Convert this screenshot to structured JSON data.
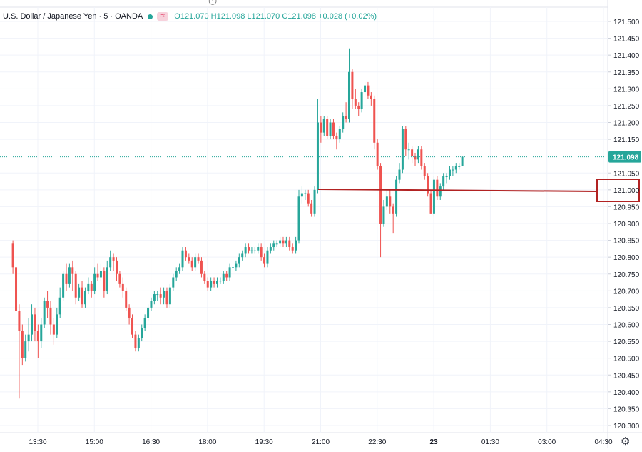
{
  "legend": {
    "symbol": "U.S. Dollar / Japanese Yen · 5 · OANDA",
    "badge": "≈",
    "ohlc": "O121.070  H121.098  L121.070  C121.098  +0.028 (+0.02%)",
    "dot_color": "#26a69a",
    "badge_color": "#f7d2dc"
  },
  "chart_data": {
    "type": "candlestick",
    "title": "",
    "ylim": [
      120.28,
      121.54
    ],
    "y_ticks": [
      "121.500",
      "121.450",
      "121.400",
      "121.350",
      "121.300",
      "121.250",
      "121.200",
      "121.150",
      "121.100",
      "121.050",
      "121.000",
      "120.950",
      "120.900",
      "120.850",
      "120.800",
      "120.750",
      "120.700",
      "120.650",
      "120.600",
      "120.550",
      "120.500",
      "120.450",
      "120.400",
      "120.350",
      "120.300"
    ],
    "x_ticks": [
      {
        "label": "13:30",
        "t": 0.5
      },
      {
        "label": "15:00",
        "t": 1.5
      },
      {
        "label": "16:30",
        "t": 2.5
      },
      {
        "label": "18:00",
        "t": 3.5
      },
      {
        "label": "19:30",
        "t": 4.5
      },
      {
        "label": "21:00",
        "t": 5.5
      },
      {
        "label": "22:30",
        "t": 6.5
      },
      {
        "label": "23",
        "t": 7.5
      },
      {
        "label": "01:30",
        "t": 8.5
      },
      {
        "label": "03:00",
        "t": 9.5
      },
      {
        "label": "04:30",
        "t": 10.5
      }
    ],
    "candles_per_tick": 18,
    "first_candle_offset": -0.44,
    "last_price": "121.098",
    "last_value": 121.098,
    "up_color": "#26a69a",
    "down_color": "#ef5350",
    "annotation_line": {
      "value": 121.0,
      "label": "121.000",
      "color": "#b22222"
    },
    "closes": [
      120.84,
      120.77,
      120.64,
      120.58,
      120.5,
      120.55,
      120.57,
      120.63,
      120.58,
      120.55,
      120.6,
      120.67,
      120.65,
      120.6,
      120.57,
      120.63,
      120.68,
      120.75,
      120.72,
      120.77,
      120.75,
      120.68,
      120.71,
      120.66,
      120.7,
      120.72,
      120.7,
      120.75,
      120.74,
      120.76,
      120.7,
      120.77,
      120.8,
      120.79,
      120.75,
      120.72,
      120.7,
      120.65,
      120.62,
      120.57,
      120.53,
      120.56,
      120.59,
      120.62,
      120.65,
      120.67,
      120.69,
      120.69,
      120.68,
      120.7,
      120.66,
      120.71,
      120.74,
      120.76,
      120.77,
      120.82,
      120.8,
      120.79,
      120.77,
      120.8,
      120.79,
      120.75,
      120.73,
      120.71,
      120.73,
      120.72,
      120.73,
      120.73,
      120.75,
      120.74,
      120.77,
      120.77,
      120.78,
      120.8,
      120.81,
      120.83,
      120.82,
      120.82,
      120.82,
      120.83,
      120.8,
      120.78,
      120.82,
      120.83,
      120.84,
      120.84,
      120.85,
      120.84,
      120.85,
      120.83,
      120.82,
      120.85,
      120.98,
      120.99,
      120.99,
      120.96,
      120.93,
      121.0,
      121.2,
      121.17,
      121.21,
      121.16,
      121.2,
      121.16,
      121.15,
      121.18,
      121.22,
      121.21,
      121.35,
      121.27,
      121.25,
      121.24,
      121.29,
      121.31,
      121.28,
      121.27,
      121.14,
      121.07,
      120.9,
      120.95,
      120.98,
      120.95,
      120.93,
      121.03,
      121.06,
      121.18,
      121.12,
      121.12,
      121.1,
      121.09,
      121.12,
      121.07,
      121.04,
      120.99,
      120.93,
      121.03,
      120.98,
      121.01,
      121.04,
      121.04,
      121.06,
      121.06,
      121.07,
      121.07,
      121.098
    ],
    "candles": [
      [
        120.84,
        120.85,
        120.75,
        120.77
      ],
      [
        120.77,
        120.8,
        120.6,
        120.64
      ],
      [
        120.64,
        120.66,
        120.38,
        120.58
      ],
      [
        120.58,
        120.6,
        120.48,
        120.5
      ],
      [
        120.5,
        120.57,
        120.49,
        120.55
      ],
      [
        120.55,
        120.62,
        120.52,
        120.57
      ],
      [
        120.57,
        120.66,
        120.55,
        120.63
      ],
      [
        120.63,
        120.65,
        120.55,
        120.58
      ],
      [
        120.58,
        120.6,
        120.5,
        120.55
      ],
      [
        120.55,
        120.62,
        120.53,
        120.6
      ],
      [
        120.6,
        120.68,
        120.59,
        120.67
      ],
      [
        120.67,
        120.7,
        120.62,
        120.65
      ],
      [
        120.65,
        120.67,
        120.57,
        120.6
      ],
      [
        120.6,
        120.62,
        120.54,
        120.57
      ],
      [
        120.57,
        120.65,
        120.56,
        120.63
      ],
      [
        120.63,
        120.71,
        120.62,
        120.68
      ],
      [
        120.68,
        120.76,
        120.67,
        120.75
      ],
      [
        120.75,
        120.78,
        120.7,
        120.72
      ],
      [
        120.72,
        120.78,
        120.71,
        120.77
      ],
      [
        120.77,
        120.79,
        120.7,
        120.75
      ],
      [
        120.75,
        120.76,
        120.66,
        120.68
      ],
      [
        120.68,
        120.72,
        120.67,
        120.71
      ],
      [
        120.71,
        120.73,
        120.65,
        120.66
      ],
      [
        120.66,
        120.71,
        120.65,
        120.7
      ],
      [
        120.7,
        120.74,
        120.69,
        120.72
      ],
      [
        120.72,
        120.73,
        120.68,
        120.7
      ],
      [
        120.7,
        120.77,
        120.69,
        120.75
      ],
      [
        120.75,
        120.78,
        120.73,
        120.74
      ],
      [
        120.74,
        120.78,
        120.73,
        120.76
      ],
      [
        120.76,
        120.77,
        120.68,
        120.7
      ],
      [
        120.7,
        120.79,
        120.69,
        120.77
      ],
      [
        120.77,
        120.82,
        120.76,
        120.8
      ],
      [
        120.8,
        120.81,
        120.76,
        120.79
      ],
      [
        120.79,
        120.8,
        120.73,
        120.75
      ],
      [
        120.75,
        120.76,
        120.71,
        120.72
      ],
      [
        120.72,
        120.74,
        120.68,
        120.7
      ],
      [
        120.7,
        120.71,
        120.64,
        120.65
      ],
      [
        120.65,
        120.66,
        120.6,
        120.62
      ],
      [
        120.62,
        120.63,
        120.56,
        120.57
      ],
      [
        120.57,
        120.58,
        120.52,
        120.53
      ],
      [
        120.53,
        120.57,
        120.52,
        120.56
      ],
      [
        120.56,
        120.6,
        120.55,
        120.59
      ],
      [
        120.59,
        120.63,
        120.58,
        120.62
      ],
      [
        120.62,
        120.66,
        120.61,
        120.65
      ],
      [
        120.65,
        120.68,
        120.64,
        120.67
      ],
      [
        120.67,
        120.7,
        120.66,
        120.69
      ],
      [
        120.69,
        120.7,
        120.67,
        120.69
      ],
      [
        120.69,
        120.71,
        120.66,
        120.68
      ],
      [
        120.68,
        120.71,
        120.66,
        120.7
      ],
      [
        120.7,
        120.71,
        120.65,
        120.66
      ],
      [
        120.66,
        120.72,
        120.65,
        120.71
      ],
      [
        120.71,
        120.75,
        120.7,
        120.74
      ],
      [
        120.74,
        120.77,
        120.73,
        120.76
      ],
      [
        120.76,
        120.78,
        120.75,
        120.77
      ],
      [
        120.77,
        120.83,
        120.76,
        120.82
      ],
      [
        120.82,
        120.83,
        120.79,
        120.8
      ],
      [
        120.8,
        120.81,
        120.78,
        120.79
      ],
      [
        120.79,
        120.8,
        120.76,
        120.77
      ],
      [
        120.77,
        120.81,
        120.76,
        120.8
      ],
      [
        120.8,
        120.81,
        120.78,
        120.79
      ],
      [
        120.79,
        120.8,
        120.74,
        120.75
      ],
      [
        120.75,
        120.76,
        120.72,
        120.73
      ],
      [
        120.73,
        120.74,
        120.7,
        120.71
      ],
      [
        120.71,
        120.74,
        120.7,
        120.73
      ],
      [
        120.73,
        120.74,
        120.71,
        120.72
      ],
      [
        120.72,
        120.74,
        120.71,
        120.73
      ],
      [
        120.73,
        120.74,
        120.72,
        120.73
      ],
      [
        120.73,
        120.76,
        120.72,
        120.75
      ],
      [
        120.75,
        120.76,
        120.73,
        120.74
      ],
      [
        120.74,
        120.78,
        120.73,
        120.77
      ],
      [
        120.77,
        120.78,
        120.76,
        120.77
      ],
      [
        120.77,
        120.79,
        120.76,
        120.78
      ],
      [
        120.78,
        120.81,
        120.77,
        120.8
      ],
      [
        120.8,
        120.82,
        120.79,
        120.81
      ],
      [
        120.81,
        120.84,
        120.8,
        120.83
      ],
      [
        120.83,
        120.84,
        120.81,
        120.82
      ],
      [
        120.82,
        120.83,
        120.81,
        120.82
      ],
      [
        120.82,
        120.83,
        120.81,
        120.82
      ],
      [
        120.82,
        120.84,
        120.81,
        120.83
      ],
      [
        120.83,
        120.84,
        120.79,
        120.8
      ],
      [
        120.8,
        120.81,
        120.77,
        120.78
      ],
      [
        120.78,
        120.83,
        120.77,
        120.82
      ],
      [
        120.82,
        120.84,
        120.81,
        120.83
      ],
      [
        120.83,
        120.85,
        120.82,
        120.84
      ],
      [
        120.84,
        120.85,
        120.83,
        120.84
      ],
      [
        120.84,
        120.86,
        120.83,
        120.85
      ],
      [
        120.85,
        120.86,
        120.83,
        120.84
      ],
      [
        120.84,
        120.86,
        120.83,
        120.85
      ],
      [
        120.85,
        120.86,
        120.82,
        120.83
      ],
      [
        120.83,
        120.84,
        120.81,
        120.82
      ],
      [
        120.82,
        120.86,
        120.81,
        120.85
      ],
      [
        120.85,
        121.0,
        120.84,
        120.98
      ],
      [
        120.98,
        121.01,
        120.96,
        120.99
      ],
      [
        120.99,
        121.0,
        120.97,
        120.99
      ],
      [
        120.99,
        121.0,
        120.95,
        120.96
      ],
      [
        120.96,
        120.97,
        120.92,
        120.93
      ],
      [
        120.93,
        121.01,
        120.92,
        121.0
      ],
      [
        121.0,
        121.27,
        120.99,
        121.2
      ],
      [
        121.2,
        121.22,
        121.14,
        121.17
      ],
      [
        121.17,
        121.22,
        121.16,
        121.21
      ],
      [
        121.21,
        121.22,
        121.15,
        121.16
      ],
      [
        121.16,
        121.21,
        121.15,
        121.2
      ],
      [
        121.2,
        121.21,
        121.15,
        121.16
      ],
      [
        121.16,
        121.17,
        121.12,
        121.15
      ],
      [
        121.15,
        121.19,
        121.14,
        121.18
      ],
      [
        121.18,
        121.23,
        121.17,
        121.22
      ],
      [
        121.22,
        121.26,
        121.2,
        121.21
      ],
      [
        121.21,
        121.42,
        121.2,
        121.35
      ],
      [
        121.35,
        121.36,
        121.24,
        121.27
      ],
      [
        121.27,
        121.3,
        121.24,
        121.25
      ],
      [
        121.25,
        121.26,
        121.22,
        121.24
      ],
      [
        121.24,
        121.3,
        121.23,
        121.29
      ],
      [
        121.29,
        121.32,
        121.28,
        121.31
      ],
      [
        121.31,
        121.32,
        121.27,
        121.28
      ],
      [
        121.28,
        121.29,
        121.25,
        121.27
      ],
      [
        121.27,
        121.28,
        121.12,
        121.14
      ],
      [
        121.14,
        121.15,
        121.06,
        121.07
      ],
      [
        121.07,
        121.08,
        120.8,
        120.9
      ],
      [
        120.9,
        120.97,
        120.89,
        120.95
      ],
      [
        120.95,
        121.0,
        120.94,
        120.98
      ],
      [
        120.98,
        121.0,
        120.93,
        120.95
      ],
      [
        120.95,
        120.96,
        120.87,
        120.93
      ],
      [
        120.93,
        121.04,
        120.92,
        121.03
      ],
      [
        121.03,
        121.08,
        121.02,
        121.06
      ],
      [
        121.06,
        121.19,
        121.05,
        121.18
      ],
      [
        121.18,
        121.19,
        121.1,
        121.12
      ],
      [
        121.12,
        121.14,
        121.09,
        121.12
      ],
      [
        121.12,
        121.13,
        121.08,
        121.1
      ],
      [
        121.1,
        121.11,
        121.07,
        121.09
      ],
      [
        121.09,
        121.13,
        121.08,
        121.12
      ],
      [
        121.12,
        121.13,
        121.06,
        121.07
      ],
      [
        121.07,
        121.08,
        121.03,
        121.04
      ],
      [
        121.04,
        121.05,
        120.98,
        120.99
      ],
      [
        120.99,
        121.0,
        120.93,
        120.93
      ],
      [
        120.93,
        121.04,
        120.92,
        121.03
      ],
      [
        121.03,
        121.04,
        120.97,
        120.98
      ],
      [
        120.98,
        121.02,
        120.97,
        121.01
      ],
      [
        121.01,
        121.05,
        121.0,
        121.04
      ],
      [
        121.04,
        121.05,
        121.02,
        121.04
      ],
      [
        121.04,
        121.07,
        121.03,
        121.06
      ],
      [
        121.06,
        121.07,
        121.04,
        121.06
      ],
      [
        121.06,
        121.08,
        121.05,
        121.07
      ],
      [
        121.07,
        121.08,
        121.06,
        121.07
      ],
      [
        121.07,
        121.098,
        121.07,
        121.098
      ]
    ]
  }
}
